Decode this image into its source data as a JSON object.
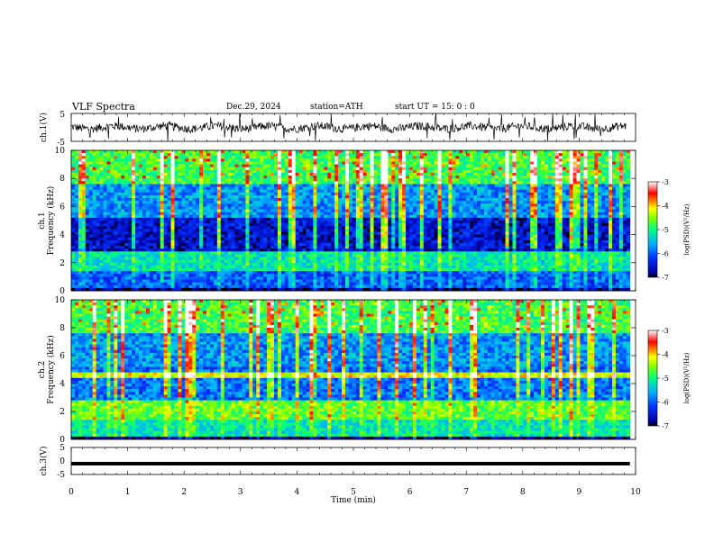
{
  "header": {
    "title": "VLF  Spectra",
    "date": "Dec.29, 2024",
    "station": "station=ATH",
    "start": "start  UT  =    15: 0  : 0"
  },
  "chart_data": [
    {
      "type": "line",
      "ylabel": "ch.1(V)",
      "ylim": [
        -5,
        5
      ],
      "yticks": [
        "5",
        "-5"
      ],
      "xlim": [
        0,
        10
      ],
      "series_description": "noisy waveform centered near 0 V"
    },
    {
      "type": "heatmap",
      "ylabel": "ch.1\nFrequency (kHz)",
      "ylabel_lines": [
        "ch.1",
        "Frequency  (kHz)"
      ],
      "ylim": [
        0,
        10
      ],
      "yticks": [
        "0",
        "2",
        "4",
        "6",
        "8",
        "10"
      ],
      "xlim": [
        0,
        10
      ],
      "colorbar": {
        "label": "log(PSD)(V²/Hz)",
        "ticks": [
          "-3",
          "-4",
          "-5",
          "-6",
          "-7"
        ],
        "range": [
          -7,
          -3
        ]
      }
    },
    {
      "type": "heatmap",
      "ylabel": "ch.2\nFrequency (kHz)",
      "ylabel_lines": [
        "ch.2",
        "Frequency  (kHz)"
      ],
      "ylim": [
        0,
        10
      ],
      "yticks": [
        "0",
        "2",
        "4",
        "6",
        "8",
        "10"
      ],
      "xlim": [
        0,
        10
      ],
      "colorbar": {
        "label": "log(PSD)(V²/Hz)",
        "ticks": [
          "-3",
          "-4",
          "-5",
          "-6",
          "-7"
        ],
        "range": [
          -7,
          -3
        ]
      }
    },
    {
      "type": "line",
      "ylabel": "ch.3(V)",
      "ylim": [
        -5,
        5
      ],
      "yticks": [
        "5",
        "0",
        "-5"
      ],
      "xlim": [
        0,
        10
      ],
      "xlabel": "Time  (min)",
      "xticks": [
        "0",
        "1",
        "2",
        "3",
        "4",
        "5",
        "6",
        "7",
        "8",
        "9",
        "10"
      ],
      "series_description": "flat line near -1 V"
    }
  ]
}
